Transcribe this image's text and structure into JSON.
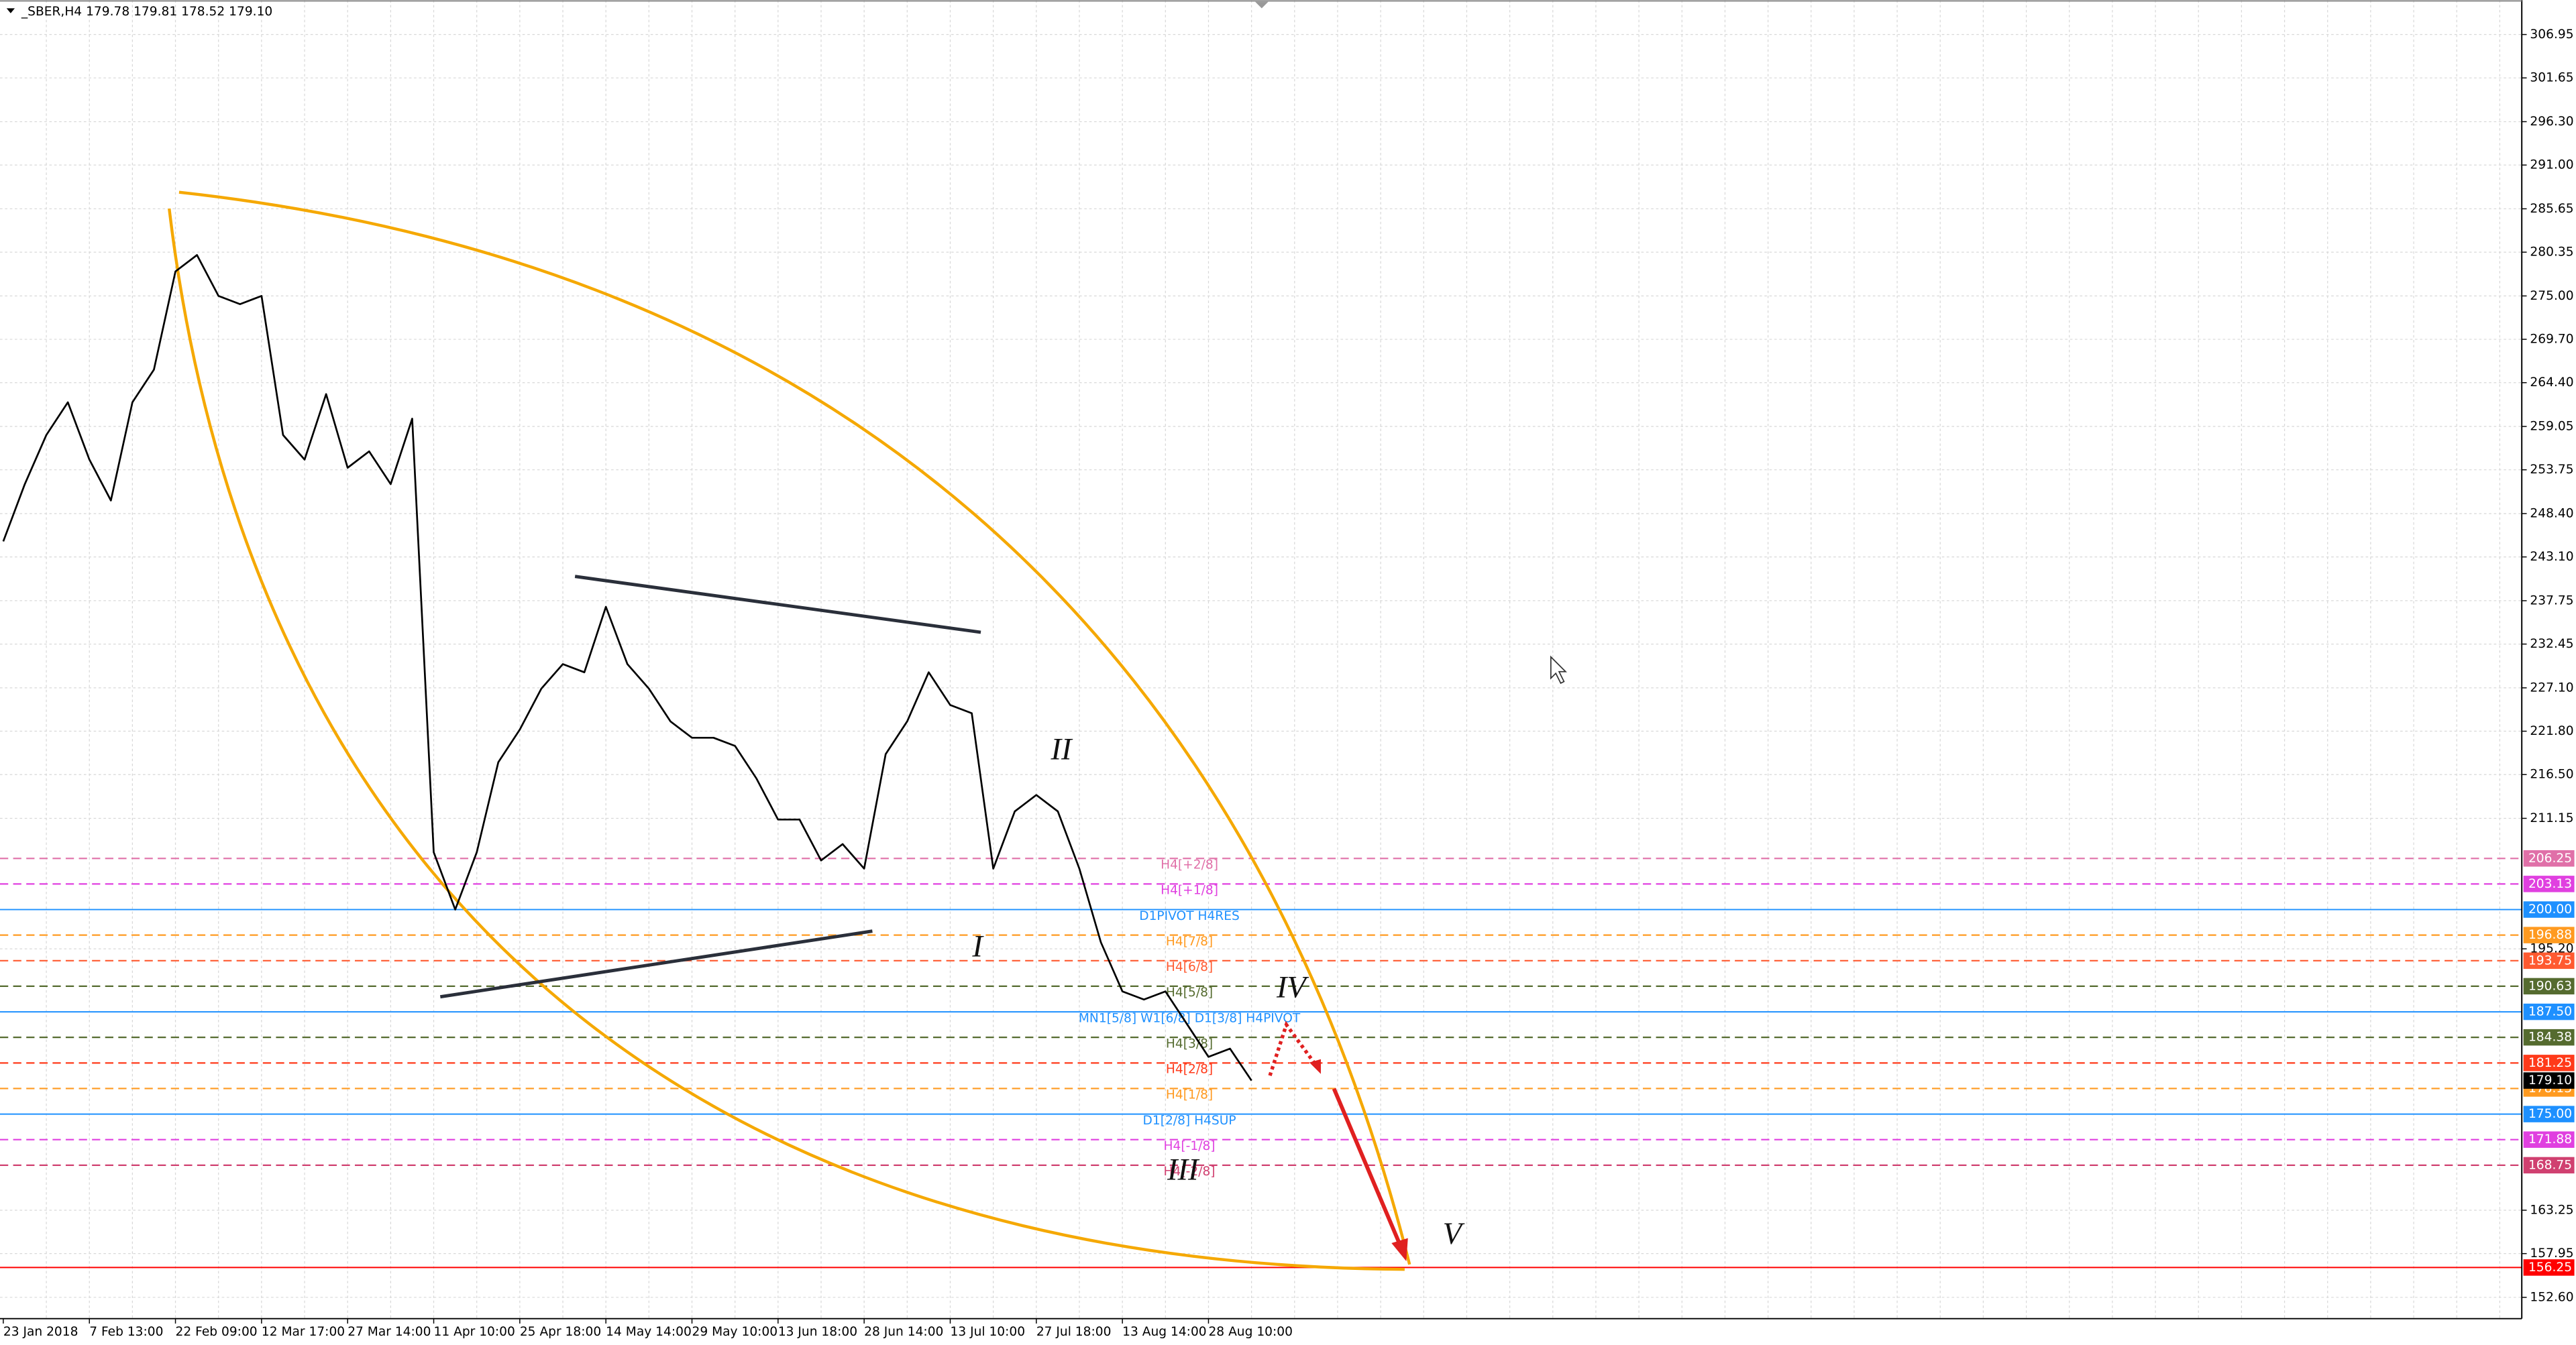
{
  "chart_data": {
    "type": "line",
    "title": "_SBER,H4  179.78 179.81 178.52 179.10",
    "color": "#000000",
    "grid": true,
    "categories": [
      "23 Jan 2018",
      null,
      null,
      null,
      "7 Feb 13:00",
      null,
      null,
      null,
      "22 Feb 09:00",
      null,
      null,
      null,
      "12 Mar 17:00",
      null,
      null,
      null,
      "27 Mar 14:00",
      null,
      null,
      null,
      "11 Apr 10:00",
      null,
      null,
      null,
      "25 Apr 18:00",
      null,
      null,
      null,
      "14 May 14:00",
      null,
      null,
      null,
      "29 May 10:00",
      null,
      null,
      null,
      "13 Jun 18:00",
      null,
      null,
      null,
      "28 Jun 14:00",
      null,
      null,
      null,
      "13 Jul 10:00",
      null,
      null,
      null,
      "27 Jul 18:00",
      null,
      null,
      null,
      "13 Aug 14:00",
      null,
      null,
      null,
      "28 Aug 10:00",
      null,
      null
    ],
    "values": [
      245,
      252,
      258,
      262,
      255,
      250,
      262,
      266,
      278,
      280,
      275,
      274,
      275,
      258,
      255,
      263,
      254,
      256,
      252,
      260,
      207,
      200,
      207,
      218,
      222,
      227,
      230,
      229,
      237,
      230,
      227,
      223,
      221,
      221,
      220,
      216,
      211,
      211,
      206,
      208,
      205,
      219,
      223,
      229,
      225,
      224,
      205,
      212,
      214,
      212,
      205,
      196,
      190,
      189,
      190,
      186,
      182,
      183,
      179.1
    ],
    "ylim": [
      150,
      311.16
    ],
    "yticks": [
      306.95,
      301.65,
      {
        "value": 296.3,
        "label": "296.30"
      },
      {
        "value": 291,
        "label": "291.00"
      },
      285.65,
      280.35,
      {
        "value": 275,
        "label": "275.00"
      },
      {
        "value": 269.7,
        "label": "269.70"
      },
      {
        "value": 264.4,
        "label": "264.40"
      },
      259.05,
      253.75,
      {
        "value": 248.4,
        "label": "248.40"
      },
      {
        "value": 243.1,
        "label": "243.10"
      },
      237.75,
      232.45,
      {
        "value": 227.1,
        "label": "227.10"
      },
      {
        "value": 221.8,
        "label": "221.80"
      },
      {
        "value": 216.5,
        "label": "216.50"
      },
      211.15,
      {
        "value": 195.2,
        "label": "195.20"
      },
      163.25,
      157.95,
      {
        "value": 152.6,
        "label": "152.60"
      }
    ],
    "levels": [
      {
        "value": 206.25,
        "label": "H4[+2/8]",
        "color": "#e070a8",
        "dash": true
      },
      {
        "value": 203.13,
        "label": "H4[+1/8]",
        "color": "#e040e0",
        "dash": true
      },
      {
        "value": 200,
        "value_label": "200.00",
        "label": "D1PIVOT H4RES",
        "color": "#1e90ff",
        "dash": false
      },
      {
        "value": 196.88,
        "label": "H4[7/8]",
        "color": "#ff9a20",
        "dash": true
      },
      {
        "value": 193.75,
        "label": "H4[6/8]",
        "color": "#ff5a30",
        "dash": true
      },
      {
        "value": 190.63,
        "label": "H4[5/8]",
        "color": "#556b2f",
        "dash": true
      },
      {
        "value": 187.5,
        "value_label": "187.50",
        "label": "MN1[5/8] W1[6/8] D1[3/8] H4PIVOT",
        "color": "#1e90ff",
        "dash": false
      },
      {
        "value": 184.38,
        "label": "H4[3/8]",
        "color": "#556b2f",
        "dash": true
      },
      {
        "value": 181.25,
        "label": "H4[2/8]",
        "color": "#ff3a1a",
        "dash": true
      },
      {
        "value": 178.13,
        "label": "H4[1/8]",
        "color": "#ff9a20",
        "dash": true
      },
      {
        "value": 175,
        "value_label": "175.00",
        "label": "D1[2/8] H4SUP",
        "color": "#1e90ff",
        "dash": false
      },
      {
        "value": 171.88,
        "label": "H4[-1/8]",
        "color": "#e040e0",
        "dash": true
      },
      {
        "value": 168.75,
        "label": "H4[-2/8]",
        "color": "#d04070",
        "dash": true
      },
      {
        "value": 156.25,
        "color": "#ff0000",
        "dash": false
      }
    ],
    "last": {
      "value": 179.1,
      "label": "179.10"
    },
    "waves": [
      "I",
      "II",
      "III",
      "IV",
      "V"
    ]
  }
}
